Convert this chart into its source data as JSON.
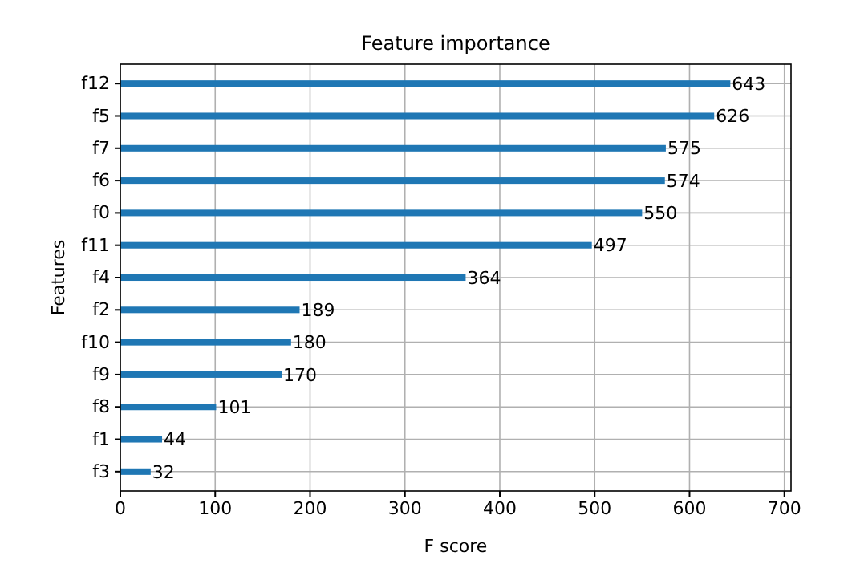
{
  "chart_data": {
    "type": "bar",
    "orientation": "horizontal",
    "title": "Feature importance",
    "xlabel": "F score",
    "ylabel": "Features",
    "categories": [
      "f12",
      "f5",
      "f7",
      "f6",
      "f0",
      "f11",
      "f4",
      "f2",
      "f10",
      "f9",
      "f8",
      "f1",
      "f3"
    ],
    "values": [
      643,
      626,
      575,
      574,
      550,
      497,
      364,
      189,
      180,
      170,
      101,
      44,
      32
    ],
    "color": "#1f77b4",
    "xlim": [
      0,
      707
    ],
    "xticks": [
      0,
      100,
      200,
      300,
      400,
      500,
      600,
      700
    ],
    "grid": true,
    "data_labels": true
  }
}
